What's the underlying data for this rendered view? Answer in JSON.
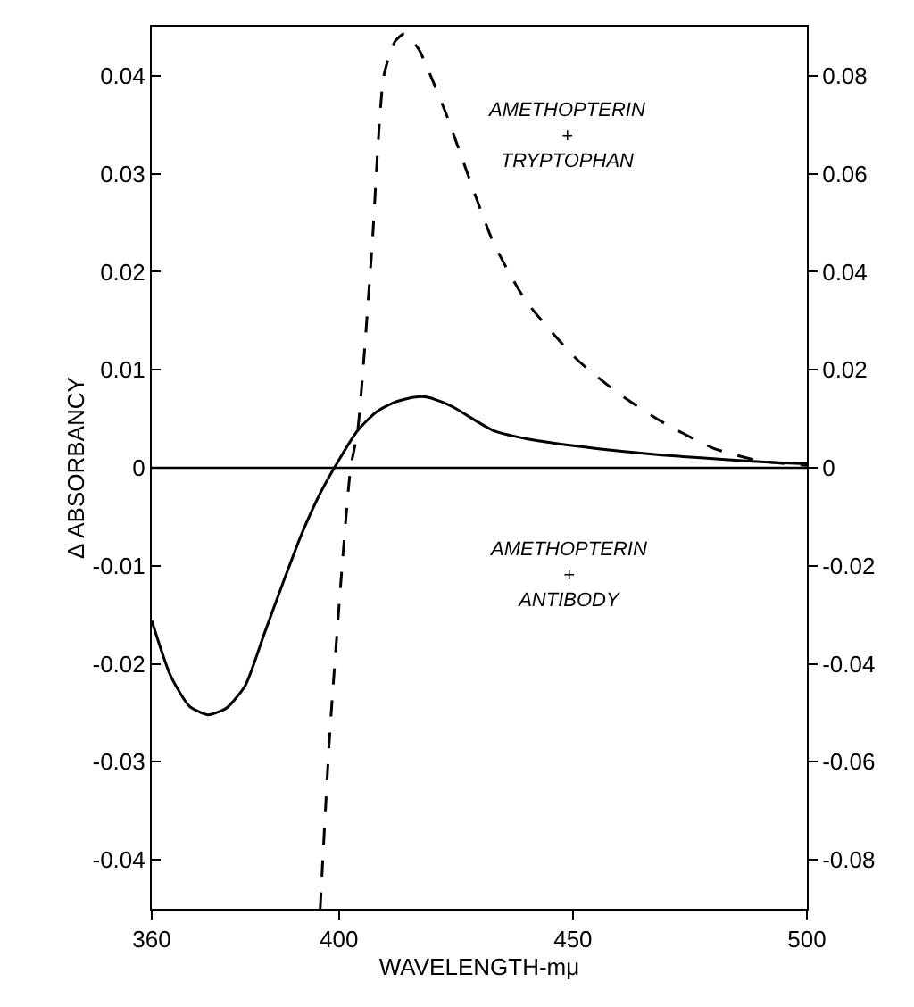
{
  "chart_data": {
    "type": "line",
    "xlabel": "WAVELENGTH-mμ",
    "ylabel": "Δ ABSORBANCY",
    "xlim": [
      360,
      500
    ],
    "xticks": [
      360,
      400,
      450,
      500
    ],
    "ylim": [
      -0.045,
      0.045
    ],
    "yticks": [
      -0.04,
      -0.03,
      -0.02,
      -0.01,
      0,
      0.01,
      0.02,
      0.03,
      0.04
    ],
    "y2lim": [
      -0.09,
      0.09
    ],
    "y2ticks": [
      -0.08,
      -0.06,
      -0.04,
      -0.02,
      0,
      0.02,
      0.04,
      0.06,
      0.08
    ],
    "series": [
      {
        "color": "#000000",
        "line_style": "solid",
        "x": [
          360,
          364,
          368,
          372,
          376,
          380,
          384,
          388,
          392,
          396,
          400,
          404,
          408,
          412,
          416,
          419,
          424,
          433,
          442,
          451,
          460,
          469,
          478,
          487,
          495,
          500
        ],
        "values": [
          -0.0156,
          -0.0212,
          -0.0243,
          -0.0252,
          -0.0245,
          -0.0222,
          -0.017,
          -0.0118,
          -0.0068,
          -0.0026,
          0.0008,
          0.0038,
          0.0057,
          0.0067,
          0.0072,
          0.0072,
          0.0063,
          0.0038,
          0.0028,
          0.0022,
          0.0017,
          0.0013,
          0.001,
          0.0007,
          0.0005,
          0.0004
        ]
      },
      {
        "color": "#000000",
        "line_style": "dashed",
        "axis": "y2",
        "x": [
          396,
          398,
          400.6,
          402.5,
          404,
          407,
          409.6,
          412,
          414,
          417,
          419.6,
          423,
          426,
          433,
          440,
          451,
          460,
          469,
          480,
          490,
          500
        ],
        "values": [
          -0.09,
          -0.055,
          -0.021,
          0,
          0.0075,
          0.044,
          0.08,
          0.087,
          0.0886,
          0.0855,
          0.08,
          0.072,
          0.064,
          0.046,
          0.034,
          0.022,
          0.015,
          0.0094,
          0.004,
          0.0014,
          0.0005
        ]
      }
    ],
    "ref_lines": [
      {
        "axis": "y",
        "value": 0
      }
    ],
    "annotations": [
      "AMETHOPTERIN\n+\nTRYPTOPHAN",
      "AMETHOPTERIN\n+\nANTIBODY"
    ]
  }
}
